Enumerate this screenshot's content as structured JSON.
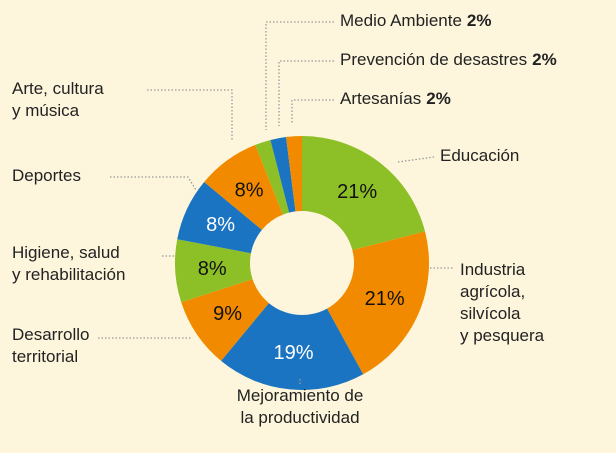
{
  "chart_data": {
    "type": "donut",
    "categories": [
      [
        "Educación"
      ],
      [
        "Industria",
        "agrícola,",
        "silvícola",
        "y pesquera"
      ],
      [
        "Mejoramiento de",
        "la productividad"
      ],
      [
        "Desarrollo",
        "territorial"
      ],
      [
        "Higiene, salud",
        "y rehabilitación"
      ],
      [
        "Deportes"
      ],
      [
        "Arte, cultura",
        "y música"
      ],
      [
        "Medio Ambiente"
      ],
      [
        "Prevención de desastres"
      ],
      [
        "Artesanías"
      ]
    ],
    "values": [
      21,
      21,
      19,
      9,
      8,
      8,
      8,
      2,
      2,
      2
    ],
    "value_labels": [
      "21%",
      "21%",
      "19%",
      "9%",
      "8%",
      "8%",
      "8%",
      "2%",
      "2%",
      "2%"
    ],
    "colors": [
      "#8dbf27",
      "#f28a00",
      "#1b74c1",
      "#f28a00",
      "#8dbf27",
      "#1b74c1",
      "#f28a00",
      "#8dbf27",
      "#1b74c1",
      "#f28a00"
    ]
  }
}
